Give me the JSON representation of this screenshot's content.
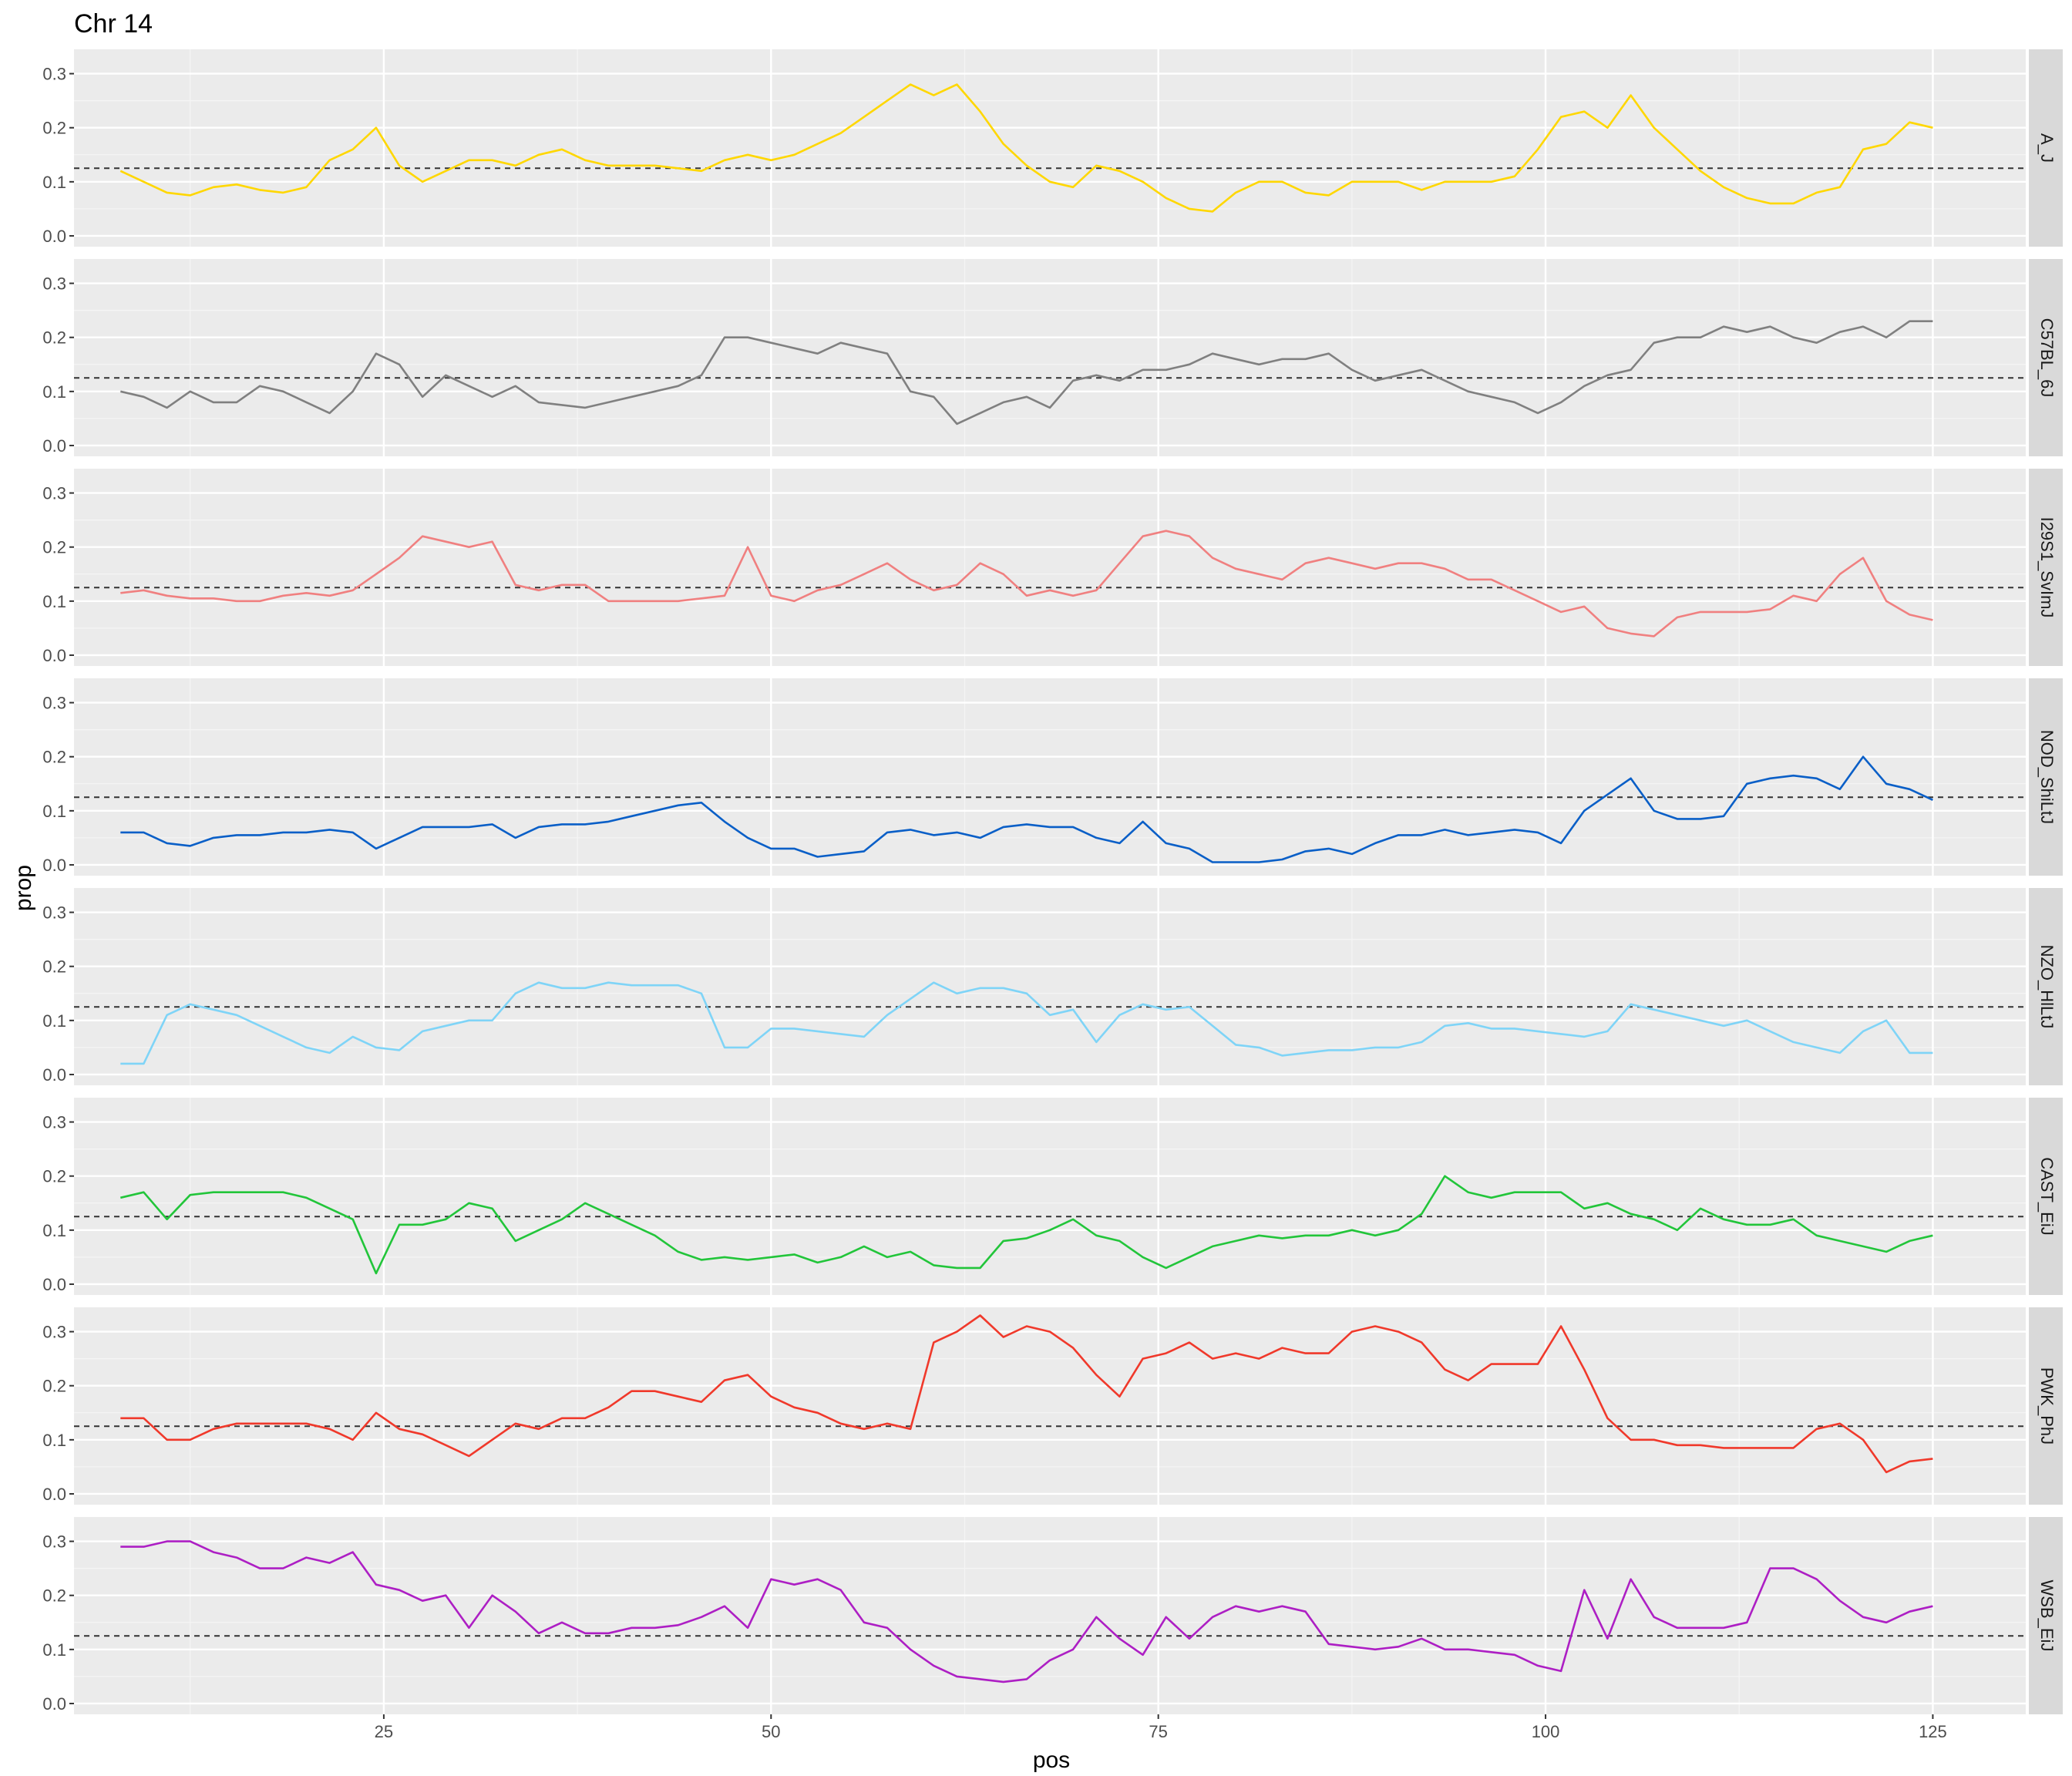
{
  "chart_data": {
    "type": "line",
    "title": "Chr 14",
    "xlabel": "pos",
    "ylabel": "prop",
    "xlim": [
      5,
      131
    ],
    "ylim": [
      -0.02,
      0.345
    ],
    "x_ticks": [
      25,
      50,
      75,
      100,
      125
    ],
    "y_ticks": [
      0.0,
      0.1,
      0.2,
      0.3
    ],
    "y_tick_labels": [
      "0.0",
      "0.1",
      "0.2",
      "0.3"
    ],
    "reference_line": 0.125,
    "grid": true,
    "facet_labels_position": "right",
    "x": [
      8,
      9.5,
      11,
      12.5,
      14,
      15.5,
      17,
      18.5,
      20,
      21.5,
      23,
      24.5,
      26,
      27.5,
      29,
      30.5,
      32,
      33.5,
      35,
      36.5,
      38,
      39.5,
      41,
      42.5,
      44,
      45.5,
      47,
      48.5,
      50,
      51.5,
      53,
      54.5,
      56,
      57.5,
      59,
      60.5,
      62,
      63.5,
      65,
      66.5,
      68,
      69.5,
      71,
      72.5,
      74,
      75.5,
      77,
      78.5,
      80,
      81.5,
      83,
      84.5,
      86,
      87.5,
      89,
      90.5,
      92,
      93.5,
      95,
      96.5,
      98,
      99.5,
      101,
      102.5,
      104,
      105.5,
      107,
      108.5,
      110,
      111.5,
      113,
      114.5,
      116,
      117.5,
      119,
      120.5,
      122,
      123.5,
      125
    ],
    "series": [
      {
        "name": "A_J",
        "color": "#FFD700",
        "values": [
          0.12,
          0.1,
          0.08,
          0.075,
          0.09,
          0.095,
          0.085,
          0.08,
          0.09,
          0.14,
          0.16,
          0.2,
          0.13,
          0.1,
          0.12,
          0.14,
          0.14,
          0.13,
          0.15,
          0.16,
          0.14,
          0.13,
          0.13,
          0.13,
          0.125,
          0.12,
          0.14,
          0.15,
          0.14,
          0.15,
          0.17,
          0.19,
          0.22,
          0.25,
          0.28,
          0.26,
          0.28,
          0.23,
          0.17,
          0.13,
          0.1,
          0.09,
          0.13,
          0.12,
          0.1,
          0.07,
          0.05,
          0.045,
          0.08,
          0.1,
          0.1,
          0.08,
          0.075,
          0.1,
          0.1,
          0.1,
          0.085,
          0.1,
          0.1,
          0.1,
          0.11,
          0.16,
          0.22,
          0.23,
          0.2,
          0.26,
          0.2,
          0.16,
          0.12,
          0.09,
          0.07,
          0.06,
          0.06,
          0.08,
          0.09,
          0.16,
          0.17,
          0.21,
          0.2
        ]
      },
      {
        "name": "C57BL_6J",
        "color": "#808080",
        "values": [
          0.1,
          0.09,
          0.07,
          0.1,
          0.08,
          0.08,
          0.11,
          0.1,
          0.08,
          0.06,
          0.1,
          0.17,
          0.15,
          0.09,
          0.13,
          0.11,
          0.09,
          0.11,
          0.08,
          0.075,
          0.07,
          0.08,
          0.09,
          0.1,
          0.11,
          0.13,
          0.2,
          0.2,
          0.19,
          0.18,
          0.17,
          0.19,
          0.18,
          0.17,
          0.1,
          0.09,
          0.04,
          0.06,
          0.08,
          0.09,
          0.07,
          0.12,
          0.13,
          0.12,
          0.14,
          0.14,
          0.15,
          0.17,
          0.16,
          0.15,
          0.16,
          0.16,
          0.17,
          0.14,
          0.12,
          0.13,
          0.14,
          0.12,
          0.1,
          0.09,
          0.08,
          0.06,
          0.08,
          0.11,
          0.13,
          0.14,
          0.19,
          0.2,
          0.2,
          0.22,
          0.21,
          0.22,
          0.2,
          0.19,
          0.21,
          0.22,
          0.2,
          0.23,
          0.23
        ]
      },
      {
        "name": "I29S1_SvImJ",
        "color": "#F08080",
        "values": [
          0.115,
          0.12,
          0.11,
          0.105,
          0.105,
          0.1,
          0.1,
          0.11,
          0.115,
          0.11,
          0.12,
          0.15,
          0.18,
          0.22,
          0.21,
          0.2,
          0.21,
          0.13,
          0.12,
          0.13,
          0.13,
          0.1,
          0.1,
          0.1,
          0.1,
          0.105,
          0.11,
          0.2,
          0.11,
          0.1,
          0.12,
          0.13,
          0.15,
          0.17,
          0.14,
          0.12,
          0.13,
          0.17,
          0.15,
          0.11,
          0.12,
          0.11,
          0.12,
          0.17,
          0.22,
          0.23,
          0.22,
          0.18,
          0.16,
          0.15,
          0.14,
          0.17,
          0.18,
          0.17,
          0.16,
          0.17,
          0.17,
          0.16,
          0.14,
          0.14,
          0.12,
          0.1,
          0.08,
          0.09,
          0.05,
          0.04,
          0.035,
          0.07,
          0.08,
          0.08,
          0.08,
          0.085,
          0.11,
          0.1,
          0.15,
          0.18,
          0.1,
          0.075,
          0.065
        ]
      },
      {
        "name": "NOD_ShiLtJ",
        "color": "#0A5FC7",
        "values": [
          0.06,
          0.06,
          0.04,
          0.035,
          0.05,
          0.055,
          0.055,
          0.06,
          0.06,
          0.065,
          0.06,
          0.03,
          0.05,
          0.07,
          0.07,
          0.07,
          0.075,
          0.05,
          0.07,
          0.075,
          0.075,
          0.08,
          0.09,
          0.1,
          0.11,
          0.115,
          0.08,
          0.05,
          0.03,
          0.03,
          0.015,
          0.02,
          0.025,
          0.06,
          0.065,
          0.055,
          0.06,
          0.05,
          0.07,
          0.075,
          0.07,
          0.07,
          0.05,
          0.04,
          0.08,
          0.04,
          0.03,
          0.005,
          0.005,
          0.005,
          0.01,
          0.025,
          0.03,
          0.02,
          0.04,
          0.055,
          0.055,
          0.065,
          0.055,
          0.06,
          0.065,
          0.06,
          0.04,
          0.1,
          0.13,
          0.16,
          0.1,
          0.085,
          0.085,
          0.09,
          0.15,
          0.16,
          0.165,
          0.16,
          0.14,
          0.2,
          0.15,
          0.14,
          0.12
        ]
      },
      {
        "name": "NZO_HlLtJ",
        "color": "#7FD4F7",
        "values": [
          0.02,
          0.02,
          0.11,
          0.13,
          0.12,
          0.11,
          0.09,
          0.07,
          0.05,
          0.04,
          0.07,
          0.05,
          0.045,
          0.08,
          0.09,
          0.1,
          0.1,
          0.15,
          0.17,
          0.16,
          0.16,
          0.17,
          0.165,
          0.165,
          0.165,
          0.15,
          0.05,
          0.05,
          0.085,
          0.085,
          0.08,
          0.075,
          0.07,
          0.11,
          0.14,
          0.17,
          0.15,
          0.16,
          0.16,
          0.15,
          0.11,
          0.12,
          0.06,
          0.11,
          0.13,
          0.12,
          0.125,
          0.09,
          0.055,
          0.05,
          0.035,
          0.04,
          0.045,
          0.045,
          0.05,
          0.05,
          0.06,
          0.09,
          0.095,
          0.085,
          0.085,
          0.08,
          0.075,
          0.07,
          0.08,
          0.13,
          0.12,
          0.11,
          0.1,
          0.09,
          0.1,
          0.08,
          0.06,
          0.05,
          0.04,
          0.08,
          0.1,
          0.04,
          0.04
        ]
      },
      {
        "name": "CAST_EiJ",
        "color": "#22C53A",
        "values": [
          0.16,
          0.17,
          0.12,
          0.165,
          0.17,
          0.17,
          0.17,
          0.17,
          0.16,
          0.14,
          0.12,
          0.02,
          0.11,
          0.11,
          0.12,
          0.15,
          0.14,
          0.08,
          0.1,
          0.12,
          0.15,
          0.13,
          0.11,
          0.09,
          0.06,
          0.045,
          0.05,
          0.045,
          0.05,
          0.055,
          0.04,
          0.05,
          0.07,
          0.05,
          0.06,
          0.035,
          0.03,
          0.03,
          0.08,
          0.085,
          0.1,
          0.12,
          0.09,
          0.08,
          0.05,
          0.03,
          0.05,
          0.07,
          0.08,
          0.09,
          0.085,
          0.09,
          0.09,
          0.1,
          0.09,
          0.1,
          0.13,
          0.2,
          0.17,
          0.16,
          0.17,
          0.17,
          0.17,
          0.14,
          0.15,
          0.13,
          0.12,
          0.1,
          0.14,
          0.12,
          0.11,
          0.11,
          0.12,
          0.09,
          0.08,
          0.07,
          0.06,
          0.08,
          0.09
        ]
      },
      {
        "name": "PWK_PhJ",
        "color": "#F0392B",
        "values": [
          0.14,
          0.14,
          0.1,
          0.1,
          0.12,
          0.13,
          0.13,
          0.13,
          0.13,
          0.12,
          0.1,
          0.15,
          0.12,
          0.11,
          0.09,
          0.07,
          0.1,
          0.13,
          0.12,
          0.14,
          0.14,
          0.16,
          0.19,
          0.19,
          0.18,
          0.17,
          0.21,
          0.22,
          0.18,
          0.16,
          0.15,
          0.13,
          0.12,
          0.13,
          0.12,
          0.28,
          0.3,
          0.33,
          0.29,
          0.31,
          0.3,
          0.27,
          0.22,
          0.18,
          0.25,
          0.26,
          0.28,
          0.25,
          0.26,
          0.25,
          0.27,
          0.26,
          0.26,
          0.3,
          0.31,
          0.3,
          0.28,
          0.23,
          0.21,
          0.24,
          0.24,
          0.24,
          0.31,
          0.23,
          0.14,
          0.1,
          0.1,
          0.09,
          0.09,
          0.085,
          0.085,
          0.085,
          0.085,
          0.12,
          0.13,
          0.1,
          0.04,
          0.06,
          0.065
        ]
      },
      {
        "name": "WSB_EiJ",
        "color": "#AD1FC4",
        "values": [
          0.29,
          0.29,
          0.3,
          0.3,
          0.28,
          0.27,
          0.25,
          0.25,
          0.27,
          0.26,
          0.28,
          0.22,
          0.21,
          0.19,
          0.2,
          0.14,
          0.2,
          0.17,
          0.13,
          0.15,
          0.13,
          0.13,
          0.14,
          0.14,
          0.145,
          0.16,
          0.18,
          0.14,
          0.23,
          0.22,
          0.23,
          0.21,
          0.15,
          0.14,
          0.1,
          0.07,
          0.05,
          0.045,
          0.04,
          0.045,
          0.08,
          0.1,
          0.16,
          0.12,
          0.09,
          0.16,
          0.12,
          0.16,
          0.18,
          0.17,
          0.18,
          0.17,
          0.11,
          0.105,
          0.1,
          0.105,
          0.12,
          0.1,
          0.1,
          0.095,
          0.09,
          0.07,
          0.06,
          0.21,
          0.12,
          0.23,
          0.16,
          0.14,
          0.14,
          0.14,
          0.15,
          0.25,
          0.25,
          0.23,
          0.19,
          0.16,
          0.15,
          0.17,
          0.18
        ]
      }
    ]
  }
}
